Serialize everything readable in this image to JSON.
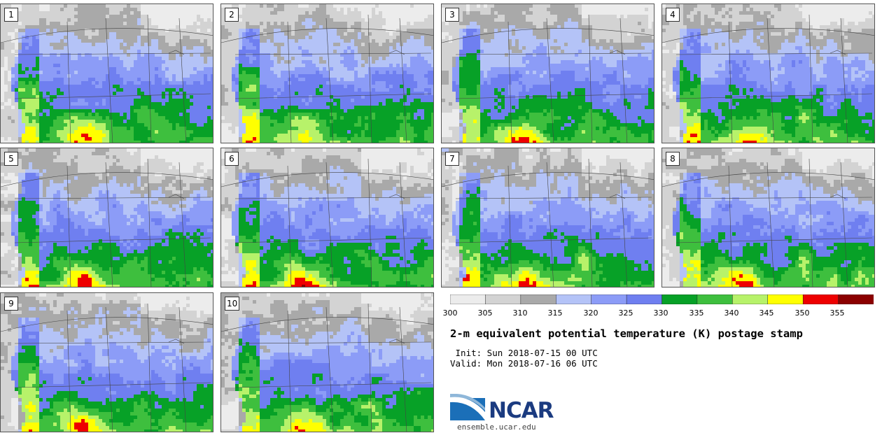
{
  "panels": [
    {
      "label": "1"
    },
    {
      "label": "2"
    },
    {
      "label": "3"
    },
    {
      "label": "4"
    },
    {
      "label": "5"
    },
    {
      "label": "6"
    },
    {
      "label": "7"
    },
    {
      "label": "8"
    },
    {
      "label": "9"
    },
    {
      "label": "10"
    }
  ],
  "colorbar": {
    "labels": [
      "300",
      "305",
      "310",
      "315",
      "320",
      "325",
      "330",
      "335",
      "340",
      "345",
      "350",
      "355"
    ],
    "colors": [
      "#ececec",
      "#d3d3d3",
      "#a9a9a9",
      "#b4c3f7",
      "#8c9cf7",
      "#6f7ff0",
      "#07a127",
      "#3ebf3e",
      "#b7f26a",
      "#ffff00",
      "#ee0000",
      "#8b0000"
    ]
  },
  "title": "2-m equivalent potential temperature (K) postage stamp",
  "init": " Init: Sun 2018-07-15 00 UTC",
  "valid": "Valid: Mon 2018-07-16 06 UTC",
  "logo": {
    "name": "NCAR",
    "url": "ensemble.ucar.edu"
  }
}
